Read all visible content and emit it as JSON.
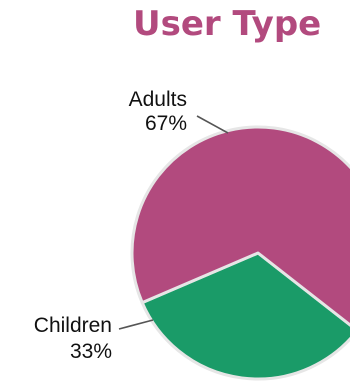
{
  "chart_data": {
    "type": "pie",
    "title": "User Type",
    "title_color": "#b24a7e",
    "categories": [
      "Adults",
      "Children"
    ],
    "values": [
      67,
      33
    ],
    "percent_labels": [
      "67%",
      "33%"
    ],
    "colors": [
      "#b24a7e",
      "#1a9b68"
    ],
    "legend": "none"
  }
}
